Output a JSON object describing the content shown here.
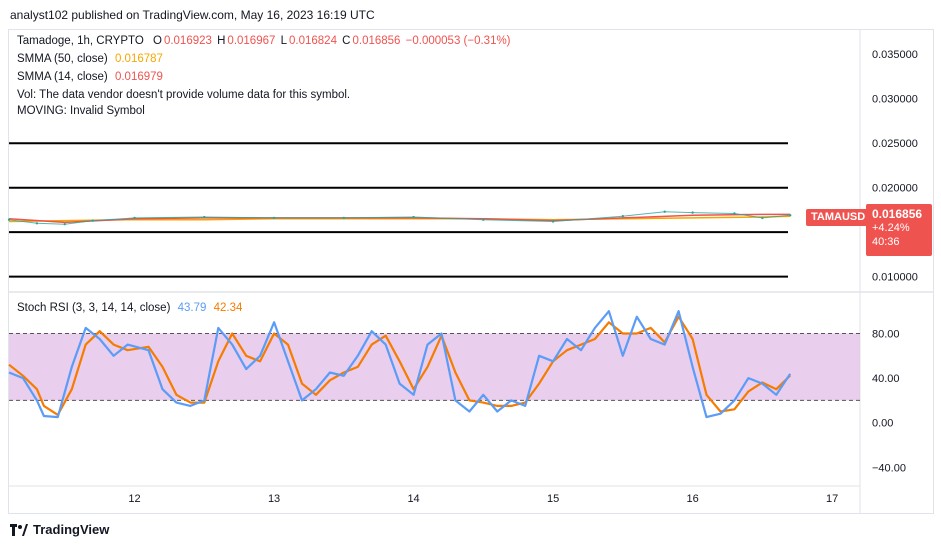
{
  "header": {
    "credit": "analyst102 published on TradingView.com, May 16, 2023 16:19 UTC"
  },
  "legend": {
    "symbol": "Tamadoge, 1h, CRYPTO",
    "o_label": "O",
    "o": "0.016923",
    "h_label": "H",
    "h": "0.016967",
    "l_label": "L",
    "l": "0.016824",
    "c_label": "C",
    "c": "0.016856",
    "change": "−0.000053 (−0.31%)",
    "smma50_label": "SMMA (50, close)",
    "smma50": "0.016787",
    "smma14_label": "SMMA (14, close)",
    "smma14": "0.016979",
    "vol_note": "Vol: The data vendor doesn't provide volume data for this symbol.",
    "moving_note": "MOVING: Invalid Symbol",
    "stoch_label": "Stoch RSI (3, 3, 14, 14, close)",
    "stoch_k": "43.79",
    "stoch_d": "42.34"
  },
  "price_tag": {
    "symbol": "TAMAUSD",
    "price": "0.016856",
    "pct": "+4.24%",
    "countdown": "40:36"
  },
  "colors": {
    "smma50": "#f7a600",
    "smma14": "#ef5350",
    "stoch_k": "#5b9cf6",
    "stoch_d": "#f57c00",
    "osc_band": "#e1bee7",
    "bull": "#26a69a",
    "bear": "#ef5350"
  },
  "footer": {
    "brand": "TradingView"
  },
  "chart_data": [
    {
      "type": "line",
      "title": "Tamadoge, 1h, CRYPTO",
      "y_ticks": [
        "0.035000",
        "0.030000",
        "0.025000",
        "0.020000",
        "0.010000"
      ],
      "ylim": [
        0.0085,
        0.0375
      ],
      "horizontal_levels": [
        0.025,
        0.02,
        0.015,
        0.01
      ],
      "x_ticks": [
        "12",
        "13",
        "14",
        "15",
        "16",
        "17"
      ],
      "xlim": [
        11.1,
        17.2
      ],
      "series": [
        {
          "name": "SMMA (50, close)",
          "x": [
            11.1,
            11.5,
            12.0,
            12.5,
            13.0,
            13.5,
            14.0,
            14.5,
            15.0,
            15.5,
            16.0,
            16.5,
            16.7
          ],
          "y": [
            0.0162,
            0.0163,
            0.0164,
            0.0164,
            0.0165,
            0.0165,
            0.0165,
            0.0165,
            0.0164,
            0.0165,
            0.0166,
            0.0167,
            0.0168
          ]
        },
        {
          "name": "SMMA (14, close)",
          "x": [
            11.1,
            11.5,
            12.0,
            12.5,
            13.0,
            13.5,
            14.0,
            14.5,
            15.0,
            15.5,
            16.0,
            16.5,
            16.7
          ],
          "y": [
            0.0165,
            0.0161,
            0.0165,
            0.0166,
            0.0166,
            0.0166,
            0.0166,
            0.0165,
            0.0163,
            0.0166,
            0.0169,
            0.017,
            0.017
          ]
        },
        {
          "name": "Price",
          "x": [
            11.1,
            11.3,
            11.5,
            11.7,
            12.0,
            12.5,
            13.0,
            13.5,
            14.0,
            14.5,
            15.0,
            15.5,
            15.8,
            16.0,
            16.3,
            16.5,
            16.7
          ],
          "y": [
            0.0164,
            0.016,
            0.0159,
            0.0163,
            0.0166,
            0.0167,
            0.0166,
            0.0166,
            0.0167,
            0.0164,
            0.0162,
            0.0168,
            0.0173,
            0.0172,
            0.0171,
            0.0166,
            0.0169
          ]
        }
      ]
    },
    {
      "type": "line",
      "title": "Stoch RSI (3, 3, 14, 14, close)",
      "y_ticks": [
        "80.00",
        "40.00",
        "0.00",
        "−40.00"
      ],
      "ylim": [
        -55,
        110
      ],
      "bands": [
        20,
        80
      ],
      "xlim": [
        11.1,
        17.2
      ],
      "series": [
        {
          "name": "K",
          "x": [
            11.1,
            11.2,
            11.3,
            11.35,
            11.45,
            11.55,
            11.65,
            11.75,
            11.85,
            11.95,
            12.1,
            12.2,
            12.3,
            12.4,
            12.5,
            12.6,
            12.7,
            12.8,
            12.9,
            13.0,
            13.1,
            13.2,
            13.3,
            13.4,
            13.5,
            13.6,
            13.7,
            13.8,
            13.9,
            14.0,
            14.1,
            14.2,
            14.3,
            14.4,
            14.5,
            14.6,
            14.7,
            14.8,
            14.9,
            15.0,
            15.1,
            15.2,
            15.3,
            15.4,
            15.5,
            15.6,
            15.7,
            15.8,
            15.9,
            16.0,
            16.1,
            16.2,
            16.3,
            16.4,
            16.5,
            16.6,
            16.7
          ],
          "y": [
            45,
            40,
            20,
            6,
            5,
            50,
            85,
            75,
            60,
            70,
            65,
            30,
            18,
            15,
            20,
            85,
            70,
            48,
            60,
            90,
            55,
            20,
            30,
            45,
            42,
            60,
            82,
            70,
            35,
            25,
            70,
            80,
            20,
            10,
            25,
            10,
            20,
            15,
            60,
            55,
            75,
            65,
            85,
            100,
            60,
            95,
            75,
            70,
            100,
            50,
            5,
            8,
            20,
            40,
            35,
            25,
            43.79
          ]
        },
        {
          "name": "D",
          "x": [
            11.1,
            11.2,
            11.3,
            11.35,
            11.45,
            11.55,
            11.65,
            11.75,
            11.85,
            11.95,
            12.1,
            12.2,
            12.3,
            12.4,
            12.5,
            12.6,
            12.7,
            12.8,
            12.9,
            13.0,
            13.1,
            13.2,
            13.3,
            13.4,
            13.5,
            13.6,
            13.7,
            13.8,
            13.9,
            14.0,
            14.1,
            14.2,
            14.3,
            14.4,
            14.5,
            14.6,
            14.7,
            14.8,
            14.9,
            15.0,
            15.1,
            15.2,
            15.3,
            15.4,
            15.5,
            15.6,
            15.7,
            15.8,
            15.9,
            16.0,
            16.1,
            16.2,
            16.3,
            16.4,
            16.5,
            16.6,
            16.7
          ],
          "y": [
            52,
            42,
            30,
            15,
            7,
            30,
            70,
            82,
            70,
            65,
            68,
            50,
            25,
            18,
            18,
            55,
            80,
            60,
            55,
            80,
            70,
            35,
            25,
            38,
            45,
            50,
            70,
            78,
            55,
            30,
            50,
            78,
            45,
            20,
            18,
            15,
            15,
            18,
            35,
            55,
            65,
            70,
            75,
            90,
            80,
            80,
            85,
            72,
            95,
            75,
            25,
            10,
            12,
            28,
            36,
            30,
            42.34
          ]
        }
      ]
    }
  ]
}
